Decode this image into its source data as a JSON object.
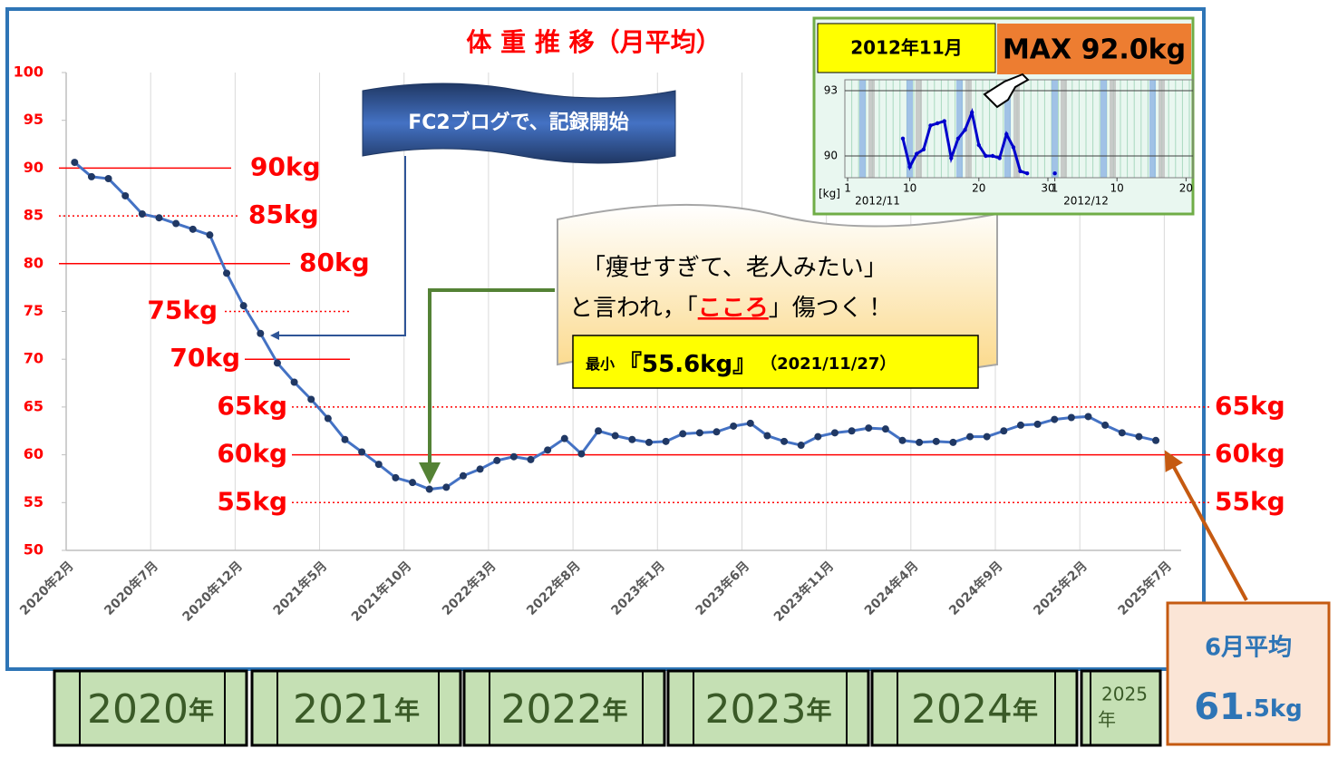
{
  "chart_data": [
    {
      "type": "line",
      "title": "体 重 推 移（月平均）",
      "categories": [
        "2020年2月",
        null,
        null,
        null,
        null,
        "2020年7月",
        null,
        null,
        null,
        null,
        "2020年12月",
        null,
        null,
        null,
        null,
        "2021年5月",
        null,
        null,
        null,
        null,
        "2021年10月",
        null,
        null,
        null,
        null,
        "2022年3月",
        null,
        null,
        null,
        null,
        "2022年8月",
        null,
        null,
        null,
        null,
        "2023年1月",
        null,
        null,
        null,
        null,
        "2023年6月",
        null,
        null,
        null,
        null,
        "2023年11月",
        null,
        null,
        null,
        null,
        "2024年4月",
        null,
        null,
        null,
        null,
        "2024年9月",
        null,
        null,
        null,
        null,
        "2025年2月",
        null,
        null,
        null,
        null,
        "2025年7月"
      ],
      "series": [
        {
          "color": "#4472c4",
          "values": [
            90.6,
            89.1,
            88.9,
            87.1,
            85.2,
            84.8,
            84.2,
            83.6,
            83.0,
            79.0,
            75.6,
            72.7,
            69.6,
            67.6,
            65.8,
            63.8,
            61.6,
            60.3,
            59.0,
            57.6,
            57.1,
            56.4,
            56.6,
            57.8,
            58.5,
            59.4,
            59.8,
            59.5,
            60.5,
            61.7,
            60.1,
            62.5,
            62.0,
            61.6,
            61.3,
            61.4,
            62.2,
            62.3,
            62.4,
            63.0,
            63.3,
            62.0,
            61.4,
            61.0,
            61.9,
            62.3,
            62.5,
            62.8,
            62.7,
            61.5,
            61.3,
            61.4,
            61.3,
            61.9,
            61.9,
            62.5,
            63.1,
            63.2,
            63.7,
            63.9,
            64.0,
            63.1,
            62.3,
            61.9,
            61.5,
            null
          ]
        }
      ],
      "ylim": [
        50,
        100
      ],
      "yticks": [
        50,
        55,
        60,
        65,
        70,
        75,
        80,
        85,
        90,
        95,
        100
      ],
      "xgrid": true,
      "reference_lines": [
        {
          "value": 90,
          "label": "90kg",
          "style": "solid"
        },
        {
          "value": 85,
          "label": "85kg",
          "style": "dotted"
        },
        {
          "value": 80,
          "label": "80kg",
          "style": "solid"
        },
        {
          "value": 75,
          "label": "75kg",
          "style": "dotted"
        },
        {
          "value": 70,
          "label": "70kg",
          "style": "solid"
        },
        {
          "value": 65,
          "label": "65kg",
          "right_label": "65kg",
          "style": "dotted"
        },
        {
          "value": 60,
          "label": "60kg",
          "right_label": "60kg",
          "style": "solid"
        },
        {
          "value": 55,
          "label": "55kg",
          "right_label": "55kg",
          "style": "dotted"
        }
      ]
    },
    {
      "type": "line",
      "title": "2012年11月",
      "subtitle": "MAX 92.0kg",
      "ylabel": "[kg]",
      "x": [
        9,
        10,
        11,
        12,
        13,
        14,
        15,
        16,
        17,
        18,
        19,
        20,
        21,
        22,
        23,
        24,
        25,
        26,
        27,
        28,
        31
      ],
      "series": [
        {
          "color": "#0000cc",
          "values": [
            90.8,
            89.5,
            90.1,
            90.3,
            91.4,
            91.5,
            91.6,
            89.9,
            90.8,
            91.2,
            92.0,
            90.5,
            90.0,
            90.0,
            89.9,
            91.0,
            90.4,
            89.3,
            89.2,
            null,
            89.2
          ]
        }
      ],
      "xlim": [
        0.6,
        51
      ],
      "ylim": [
        89,
        93.5
      ],
      "xticks": [
        1,
        10,
        20,
        30,
        {
          "value": 31,
          "label": "1"
        },
        {
          "value": 40,
          "label": "10"
        },
        {
          "value": 50,
          "label": "20"
        }
      ],
      "yticks": [
        90,
        93
      ],
      "month_labels": [
        "2012/11",
        "2012/12"
      ],
      "grid": true
    }
  ],
  "callout": "FC2ブログで、記録開始",
  "speech": {
    "line1": "「痩せすぎて、老人みたい」",
    "line2_start": "と言われ，「",
    "line2_emphasis": "こころ",
    "line2_end": "」傷つく！"
  },
  "minimum": {
    "label": "最小",
    "value": "『55.6kg』",
    "date": "（2021/11/27）"
  },
  "june_box": {
    "title": "6月平均",
    "value_main": "61",
    "value_sub": ".5kg"
  },
  "year_bar": [
    {
      "year": "2020",
      "suffix": "年"
    },
    {
      "year": "2021",
      "suffix": "年"
    },
    {
      "year": "2022",
      "suffix": "年"
    },
    {
      "year": "2023",
      "suffix": "年"
    },
    {
      "year": "2024",
      "suffix": "年"
    },
    {
      "year": "2025",
      "suffix": "年"
    }
  ]
}
